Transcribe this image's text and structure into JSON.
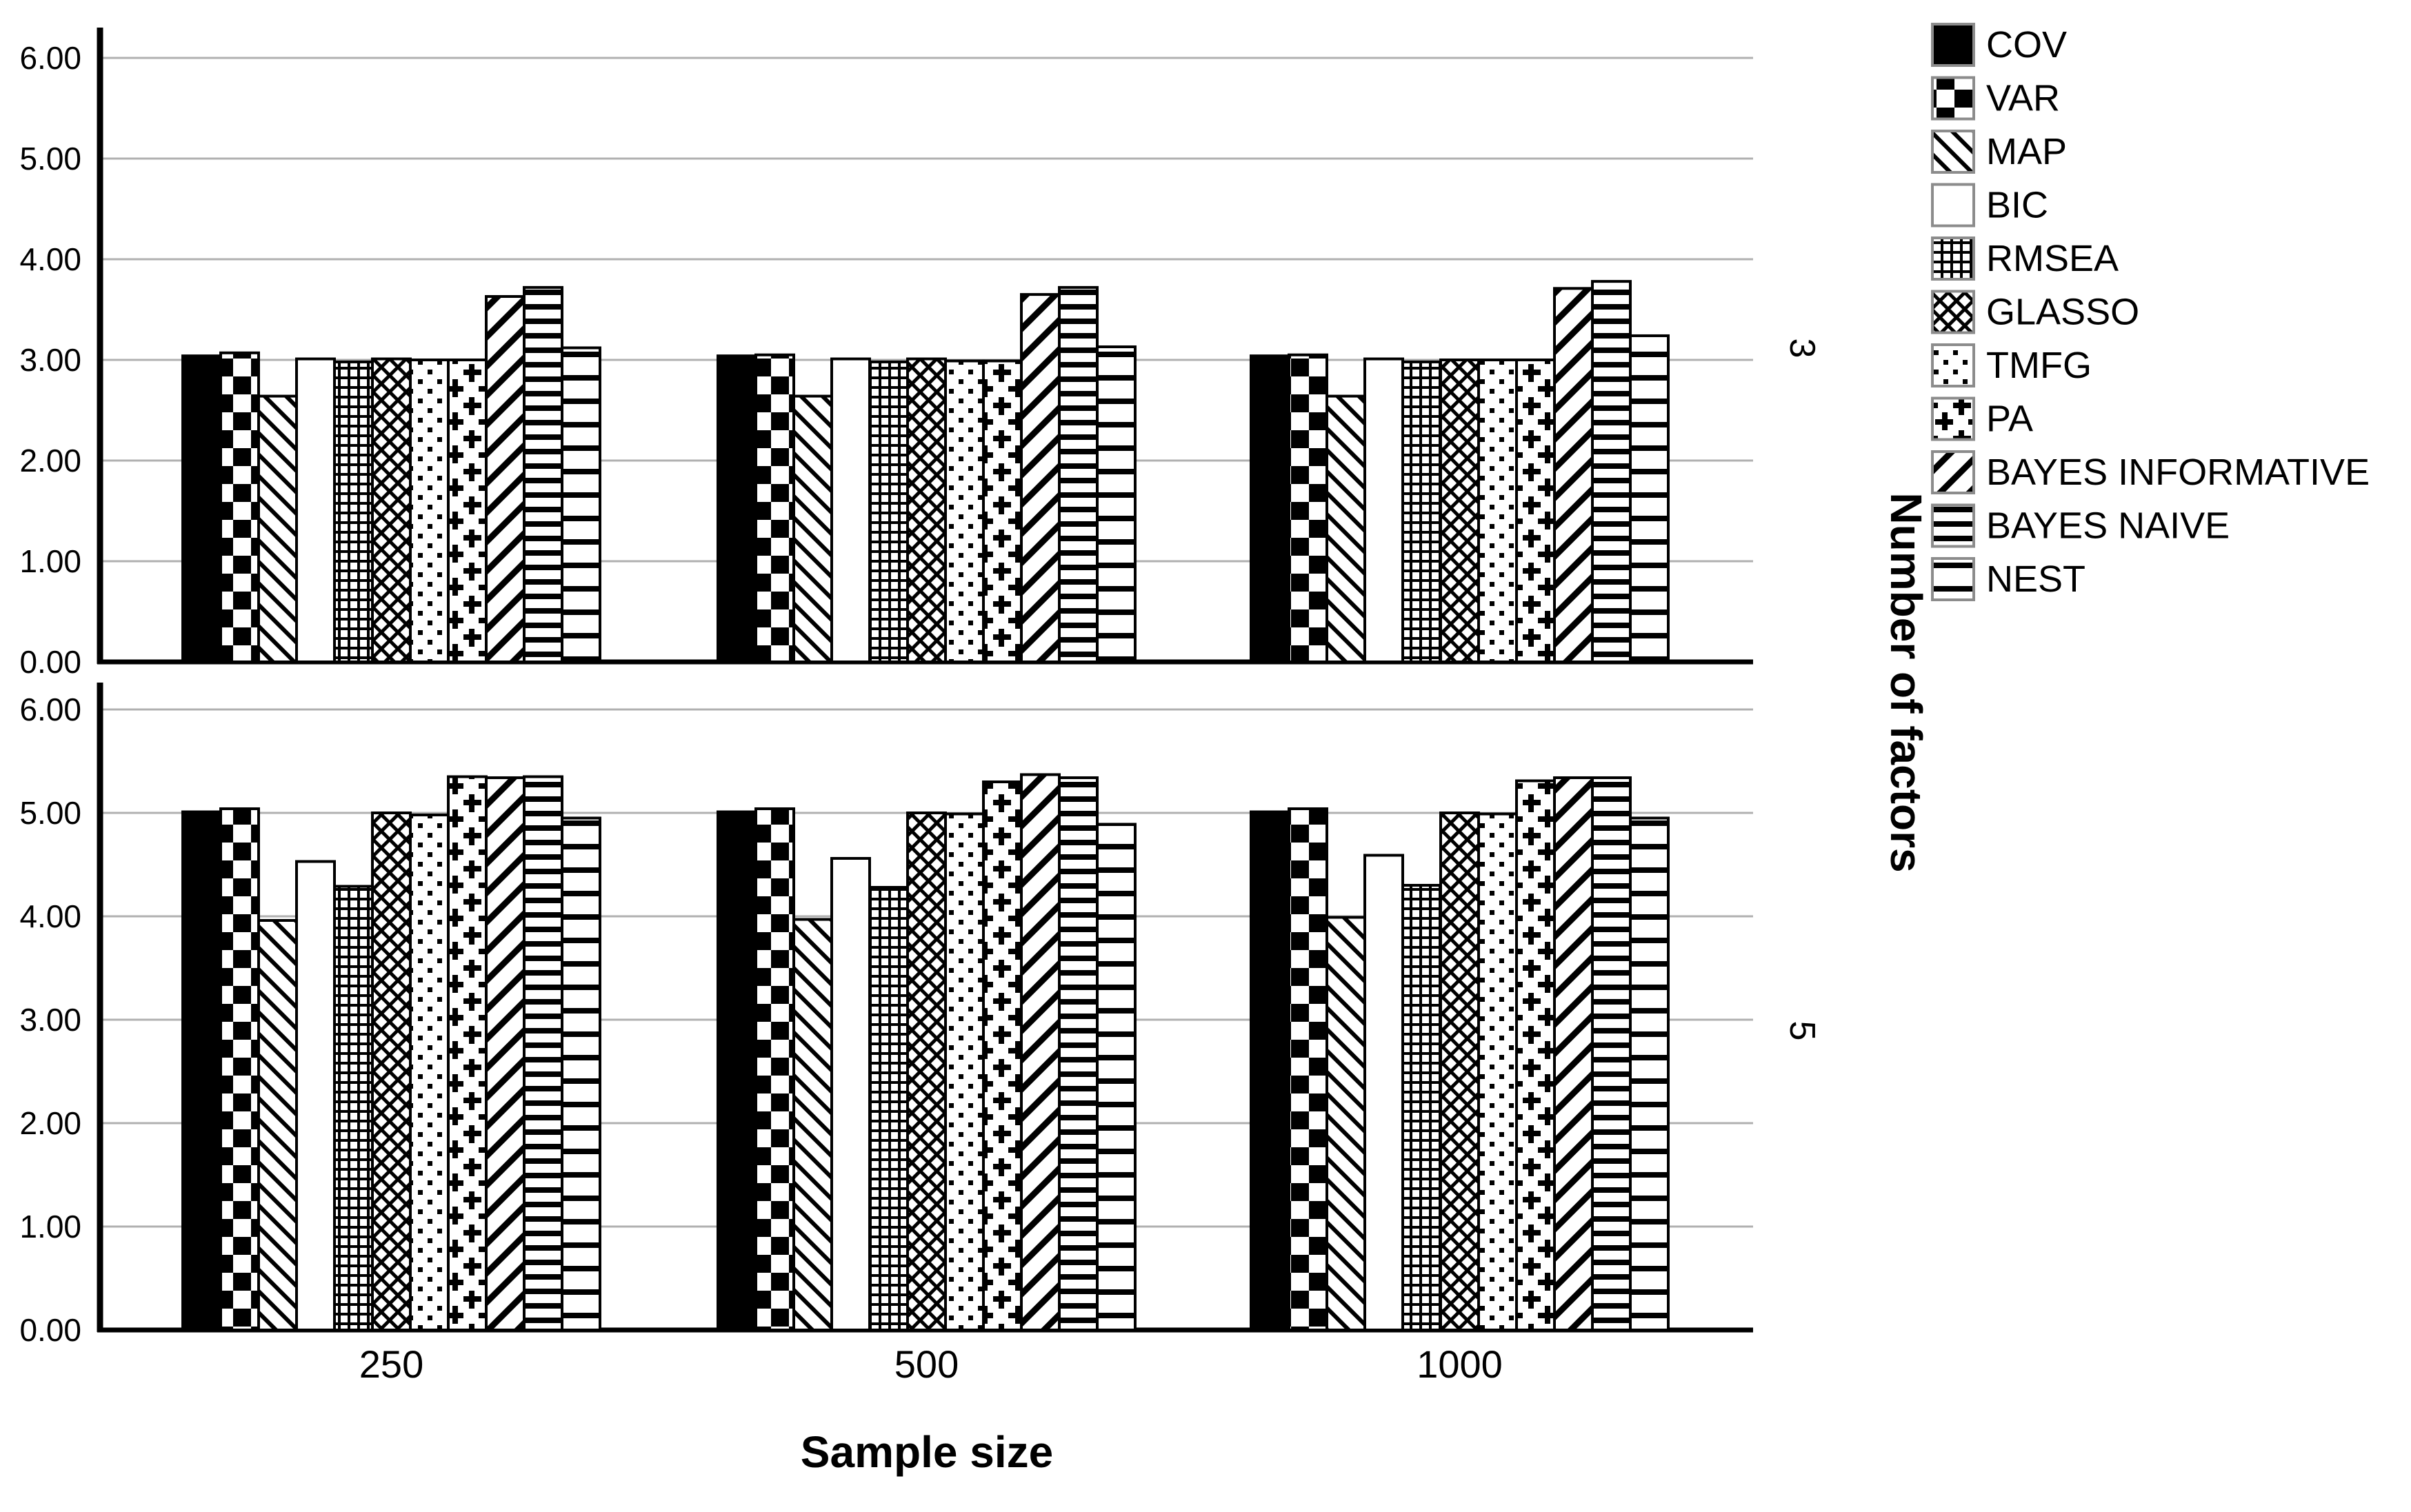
{
  "chart_data": {
    "type": "bar",
    "title": "",
    "xlabel": "Sample size",
    "ylabel_right": "Number of factors",
    "categories": [
      "250",
      "500",
      "1000"
    ],
    "ylim": [
      0,
      6
    ],
    "yticks": [
      "0.00",
      "1.00",
      "2.00",
      "3.00",
      "4.00",
      "5.00",
      "6.00"
    ],
    "grid": true,
    "legend_position": "right",
    "series_styles": [
      {
        "name": "COV",
        "pattern": "solid-black"
      },
      {
        "name": "VAR",
        "pattern": "checkerboard"
      },
      {
        "name": "MAP",
        "pattern": "diagonal-down"
      },
      {
        "name": "BIC",
        "pattern": "plain-white"
      },
      {
        "name": "RMSEA",
        "pattern": "grid"
      },
      {
        "name": "GLASSO",
        "pattern": "diamond-crosshatch"
      },
      {
        "name": "TMFG",
        "pattern": "dots"
      },
      {
        "name": "PA",
        "pattern": "plus-signs"
      },
      {
        "name": "BAYES INFORMATIVE",
        "pattern": "diagonal-up"
      },
      {
        "name": "BAYES NAIVE",
        "pattern": "horizontal-dense"
      },
      {
        "name": "NEST",
        "pattern": "horizontal-sparse"
      }
    ],
    "panels": [
      {
        "factor": "3",
        "series": [
          {
            "name": "COV",
            "values": [
              3.04,
              3.04,
              3.04
            ]
          },
          {
            "name": "VAR",
            "values": [
              3.07,
              3.05,
              3.05
            ]
          },
          {
            "name": "MAP",
            "values": [
              2.64,
              2.64,
              2.64
            ]
          },
          {
            "name": "BIC",
            "values": [
              3.01,
              3.01,
              3.01
            ]
          },
          {
            "name": "RMSEA",
            "values": [
              2.98,
              2.98,
              2.98
            ]
          },
          {
            "name": "GLASSO",
            "values": [
              3.01,
              3.01,
              3.0
            ]
          },
          {
            "name": "TMFG",
            "values": [
              3.0,
              2.99,
              3.0
            ]
          },
          {
            "name": "PA",
            "values": [
              3.0,
              2.99,
              3.0
            ]
          },
          {
            "name": "BAYES INFORMATIVE",
            "values": [
              3.63,
              3.65,
              3.71
            ]
          },
          {
            "name": "BAYES NAIVE",
            "values": [
              3.72,
              3.72,
              3.78
            ]
          },
          {
            "name": "NEST",
            "values": [
              3.12,
              3.13,
              3.24
            ]
          }
        ]
      },
      {
        "factor": "5",
        "series": [
          {
            "name": "COV",
            "values": [
              5.01,
              5.01,
              5.01
            ]
          },
          {
            "name": "VAR",
            "values": [
              5.04,
              5.04,
              5.04
            ]
          },
          {
            "name": "MAP",
            "values": [
              3.96,
              3.97,
              3.99
            ]
          },
          {
            "name": "BIC",
            "values": [
              4.53,
              4.56,
              4.59
            ]
          },
          {
            "name": "RMSEA",
            "values": [
              4.29,
              4.28,
              4.3
            ]
          },
          {
            "name": "GLASSO",
            "values": [
              5.0,
              5.0,
              5.0
            ]
          },
          {
            "name": "TMFG",
            "values": [
              4.98,
              4.99,
              4.99
            ]
          },
          {
            "name": "PA",
            "values": [
              5.35,
              5.3,
              5.31
            ]
          },
          {
            "name": "BAYES INFORMATIVE",
            "values": [
              5.34,
              5.37,
              5.34
            ]
          },
          {
            "name": "BAYES NAIVE",
            "values": [
              5.35,
              5.34,
              5.34
            ]
          },
          {
            "name": "NEST",
            "values": [
              4.95,
              4.89,
              4.95
            ]
          }
        ]
      }
    ],
    "colors": {
      "ink": "#000000",
      "background": "#ffffff",
      "gridline": "#b0b0b0",
      "legend_swatch_border": "#8c8c8c"
    }
  }
}
